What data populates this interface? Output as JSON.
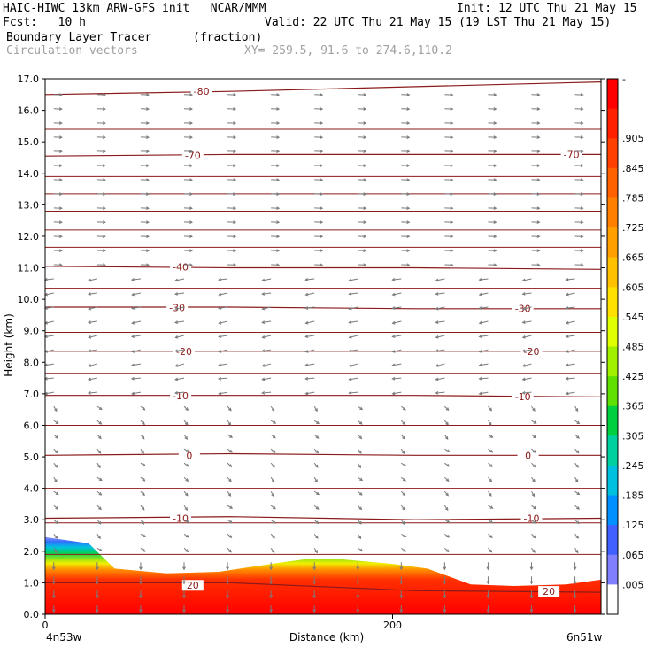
{
  "header": {
    "line1_left": "HAIC-HIWC 13km ARW-GFS init   NCAR/MMM",
    "line1_right": "Init: 12 UTC Thu 21 May 15",
    "line2_left": "Fcst:   10 h",
    "line2_right": "Valid: 22 UTC Thu 21 May 15 (19 LST Thu 21 May 15)",
    "line3_left": "Boundary Layer Tracer",
    "line3_units": "(fraction)",
    "line4_left": "Circulation vectors",
    "line4_right": "XY= 259.5, 91.6 to 274.6,110.2"
  },
  "colors": {
    "contour": "#8b1a1a",
    "vector": "#7a7a7a",
    "header_gray": "#a0a0a0"
  },
  "chart_data": {
    "type": "heatmap",
    "title": "Boundary Layer Tracer",
    "units": "(fraction)",
    "xlabel": "Distance (km)",
    "ylabel": "Height (km)",
    "xlim": [
      0,
      320
    ],
    "ylim": [
      0,
      17
    ],
    "x_ticks": [
      0,
      200
    ],
    "x_tick_labels": [
      "0",
      "200"
    ],
    "x_end_labels": [
      "4n53w",
      "6n51w"
    ],
    "y_ticks": [
      "0.0",
      "1.0",
      "2.0",
      "3.0",
      "4.0",
      "5.0",
      "6.0",
      "7.0",
      "8.0",
      "9.0",
      "10.0",
      "11.0",
      "12.0",
      "13.0",
      "14.0",
      "15.0",
      "16.0",
      "17.0"
    ],
    "colorbar": {
      "labels": [
        "-",
        ".905",
        ".845",
        ".785",
        ".725",
        ".665",
        ".605",
        ".545",
        ".485",
        ".425",
        ".365",
        ".305",
        ".245",
        ".185",
        ".125",
        ".065",
        ".005"
      ],
      "colors": [
        "#ff0000",
        "#ff2000",
        "#ff4000",
        "#ff6000",
        "#ff8000",
        "#ffa000",
        "#ffc000",
        "#ffe000",
        "#e0ff00",
        "#a0f000",
        "#60e000",
        "#00d040",
        "#00d0a0",
        "#00c0e0",
        "#0090ff",
        "#4060ff",
        "#8080ff",
        "#ffffff"
      ]
    },
    "bl_top_km": [
      [
        0,
        2.45
      ],
      [
        25,
        2.25
      ],
      [
        40,
        1.45
      ],
      [
        70,
        1.3
      ],
      [
        100,
        1.35
      ],
      [
        130,
        1.6
      ],
      [
        150,
        1.75
      ],
      [
        170,
        1.75
      ],
      [
        200,
        1.6
      ],
      [
        220,
        1.45
      ],
      [
        245,
        0.95
      ],
      [
        270,
        0.9
      ],
      [
        300,
        0.95
      ],
      [
        320,
        1.1
      ]
    ],
    "temperature_contours": [
      {
        "label": "20",
        "y": [
          1.0,
          1.0,
          0.75,
          0.7
        ],
        "label_x": 85,
        "label2_x": 290
      },
      {
        "label": "-10",
        "y": [
          3.05,
          3.1,
          3.0,
          3.05
        ],
        "label_x": 78,
        "label2_x": 280
      },
      {
        "label": "0",
        "y": [
          5.05,
          5.1,
          5.05,
          5.05
        ],
        "label_x": 83,
        "label2_x": 278
      },
      {
        "label": "-10",
        "y": [
          6.95,
          6.95,
          6.95,
          6.9
        ],
        "label_x": 78,
        "label2_x": 275
      },
      {
        "label": "-20",
        "y": [
          8.35,
          8.35,
          8.35,
          8.35
        ],
        "label_x": 80,
        "label2_x": 280
      },
      {
        "label": "-30",
        "y": [
          9.75,
          9.75,
          9.7,
          9.7
        ],
        "label_x": 76,
        "label2_x": 275
      },
      {
        "label": "-40",
        "y": [
          11.05,
          11.0,
          11.0,
          10.95
        ],
        "label_x": 78,
        "label2_x": -1
      },
      {
        "label": "-70",
        "y": [
          14.55,
          14.6,
          14.6,
          14.6
        ],
        "label_x": 85,
        "label2_x": 303
      },
      {
        "label": "-80",
        "y": [
          16.5,
          16.6,
          16.75,
          16.9
        ],
        "label_x": 90,
        "label2_x": -1
      }
    ],
    "plain_contour_heights": [
      1.9,
      2.9,
      4.0,
      6.0,
      7.65,
      8.95,
      10.35,
      11.65,
      12.2,
      12.8,
      13.35,
      13.9,
      15.4
    ]
  }
}
